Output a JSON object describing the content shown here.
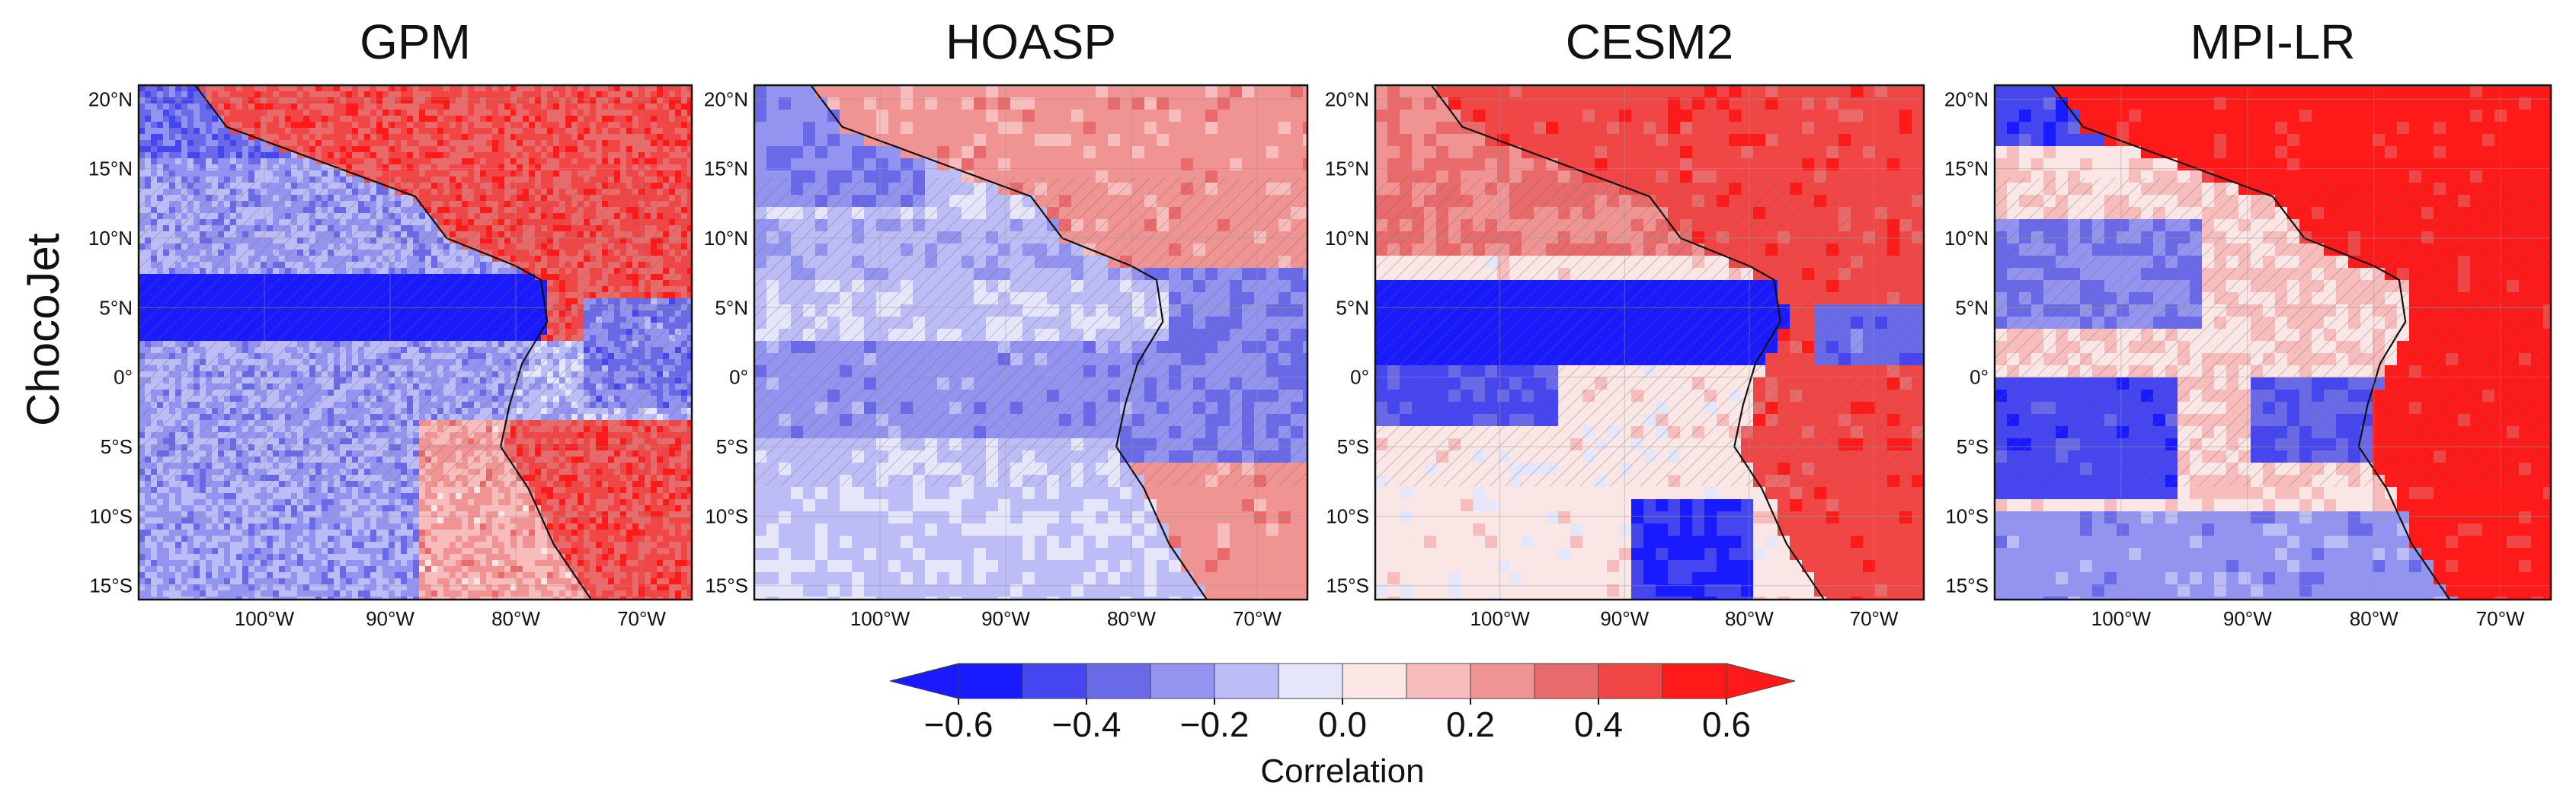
{
  "chart_data": {
    "type": "heatmap",
    "row_label": "ChocoJet",
    "panels": [
      {
        "title": "GPM"
      },
      {
        "title": "HOASP"
      },
      {
        "title": "CESM2"
      },
      {
        "title": "MPI-LR"
      }
    ],
    "lat_ticks": [
      "20°N",
      "15°N",
      "10°N",
      "5°N",
      "0°",
      "5°S",
      "10°S",
      "15°S"
    ],
    "lat_values": [
      20,
      15,
      10,
      5,
      0,
      -5,
      -10,
      -15
    ],
    "lon_ticks": [
      "100°W",
      "90°W",
      "80°W",
      "70°W"
    ],
    "lon_values": [
      -100,
      -90,
      -80,
      -70
    ],
    "lon_range": [
      -110,
      -66
    ],
    "lat_range": [
      -16,
      21
    ],
    "colorbar": {
      "label": "Correlation",
      "ticks": [
        "−0.6",
        "−0.4",
        "−0.2",
        "0.0",
        "0.2",
        "0.4",
        "0.6"
      ],
      "tick_values": [
        -0.6,
        -0.4,
        -0.2,
        0.0,
        0.2,
        0.4,
        0.6
      ],
      "range": [
        -0.6,
        0.6
      ],
      "levels": [
        -0.6,
        -0.5,
        -0.4,
        -0.3,
        -0.2,
        -0.1,
        0.0,
        0.1,
        0.2,
        0.3,
        0.4,
        0.5,
        0.6
      ],
      "colors": [
        "#1a1aff",
        "#4646f0",
        "#6a6ae8",
        "#9393f0",
        "#bcbcf6",
        "#e6e6fb",
        "#fbe6e6",
        "#f7bcbc",
        "#f09393",
        "#e86a6a",
        "#f04646",
        "#ff1a1a"
      ]
    }
  }
}
